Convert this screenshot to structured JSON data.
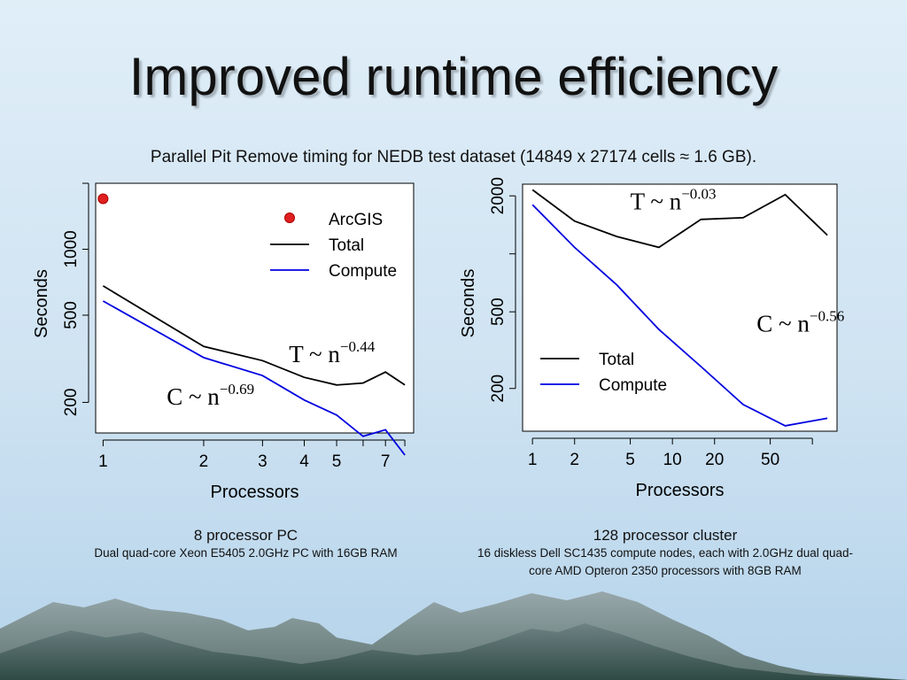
{
  "slide": {
    "title": "Improved runtime efficiency",
    "subtitle": "Parallel Pit Remove timing for NEDB test dataset (14849 x 27174 cells ≈ 1.6 GB)."
  },
  "captions": [
    {
      "heading": "8 processor PC",
      "detail": "Dual quad-core Xeon E5405 2.0GHz PC with 16GB RAM"
    },
    {
      "heading": "128 processor cluster",
      "detail": "16 diskless Dell SC1435 compute nodes, each with 2.0GHz dual quad-core AMD Opteron 2350 processors with 8GB RAM"
    }
  ],
  "chart_data": [
    {
      "type": "line",
      "xlabel": "Processors",
      "ylabel": "Seconds",
      "xscale": "log",
      "yscale": "log",
      "xlim": [
        0.95,
        8.5
      ],
      "ylim": [
        145,
        2000
      ],
      "xticks": [
        1,
        2,
        3,
        4,
        5,
        6,
        7,
        8
      ],
      "xticklabels": [
        "1",
        "2",
        "3",
        "4",
        "5",
        "",
        "7",
        ""
      ],
      "yticks": [
        200,
        500,
        1000,
        2000
      ],
      "yticklabels": [
        "200",
        "500",
        "1000",
        ""
      ],
      "legend": "top-right",
      "series": [
        {
          "name": "ArcGIS",
          "kind": "points",
          "color": "#e02020",
          "x": [
            1
          ],
          "y": [
            1700
          ]
        },
        {
          "name": "Total",
          "color": "#000000",
          "x": [
            1,
            2,
            3,
            4,
            5,
            6,
            7,
            8
          ],
          "y": [
            680,
            360,
            310,
            260,
            240,
            245,
            275,
            240
          ]
        },
        {
          "name": "Compute",
          "color": "#0000e0",
          "x": [
            1,
            2,
            3,
            4,
            5,
            6,
            7,
            8
          ],
          "y": [
            580,
            320,
            265,
            205,
            175,
            140,
            150,
            115
          ]
        }
      ],
      "annotations": [
        {
          "base": "T ~ n",
          "exp": "−0.44",
          "x": 3.6,
          "y": 305
        },
        {
          "base": "C ~ n",
          "exp": "−0.69",
          "x": 1.55,
          "y": 195
        }
      ]
    },
    {
      "type": "line",
      "xlabel": "Processors",
      "ylabel": "Seconds",
      "xscale": "log",
      "yscale": "log",
      "xlim": [
        0.85,
        150
      ],
      "ylim": [
        120,
        2300
      ],
      "xticks": [
        1,
        2,
        5,
        10,
        20,
        50,
        100
      ],
      "xticklabels": [
        "1",
        "2",
        "5",
        "10",
        "20",
        "50",
        ""
      ],
      "yticks": [
        200,
        500,
        1000,
        2000
      ],
      "yticklabels": [
        "200",
        "500",
        "",
        "2000"
      ],
      "legend": "bottom-left",
      "series": [
        {
          "name": "Total",
          "color": "#000000",
          "x": [
            1,
            2,
            4,
            8,
            16,
            32,
            64,
            128
          ],
          "y": [
            2150,
            1480,
            1230,
            1080,
            1510,
            1540,
            2030,
            1250
          ]
        },
        {
          "name": "Compute",
          "color": "#0000e0",
          "x": [
            1,
            2,
            4,
            8,
            16,
            32,
            64,
            128
          ],
          "y": [
            1800,
            1080,
            690,
            405,
            260,
            165,
            128,
            140
          ]
        }
      ],
      "annotations": [
        {
          "base": "T ~ n",
          "exp": "−0.03",
          "x": 5.0,
          "y": 1700
        },
        {
          "base": "C ~ n",
          "exp": "−0.56",
          "x": 40,
          "y": 395
        }
      ]
    }
  ]
}
